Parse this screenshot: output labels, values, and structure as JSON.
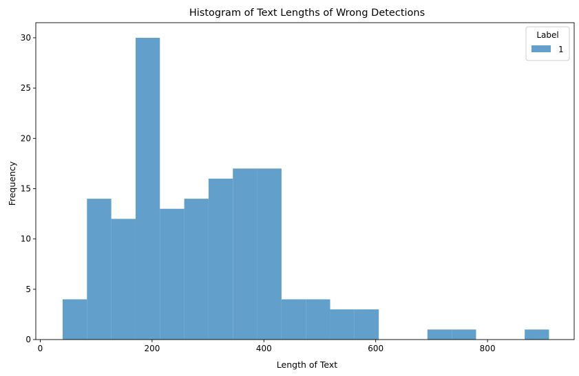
{
  "chart_data": {
    "type": "histogram",
    "title": "Histogram of Text Lengths of Wrong Detections",
    "xlabel": "Length of Text",
    "ylabel": "Frequency",
    "xlim": [
      -8,
      955
    ],
    "ylim": [
      0,
      31.5
    ],
    "x_ticks": [
      0,
      200,
      400,
      600,
      800
    ],
    "y_ticks": [
      0,
      5,
      10,
      15,
      20,
      25,
      30
    ],
    "legend": {
      "title": "Label",
      "entries": [
        "1"
      ],
      "placement": "top-right"
    },
    "grid": false,
    "series": [
      {
        "name": "1",
        "color": "#629fca",
        "bin_edges": [
          40,
          83.5,
          127,
          170.5,
          214,
          257.5,
          301,
          344.5,
          388,
          431.5,
          475,
          518.5,
          562,
          605.5,
          649,
          692.5,
          736,
          779.5,
          823,
          866.5,
          910
        ],
        "counts": [
          4,
          14,
          12,
          30,
          13,
          14,
          16,
          17,
          17,
          4,
          4,
          3,
          3,
          0,
          0,
          1,
          1,
          0,
          0,
          1
        ]
      }
    ]
  }
}
